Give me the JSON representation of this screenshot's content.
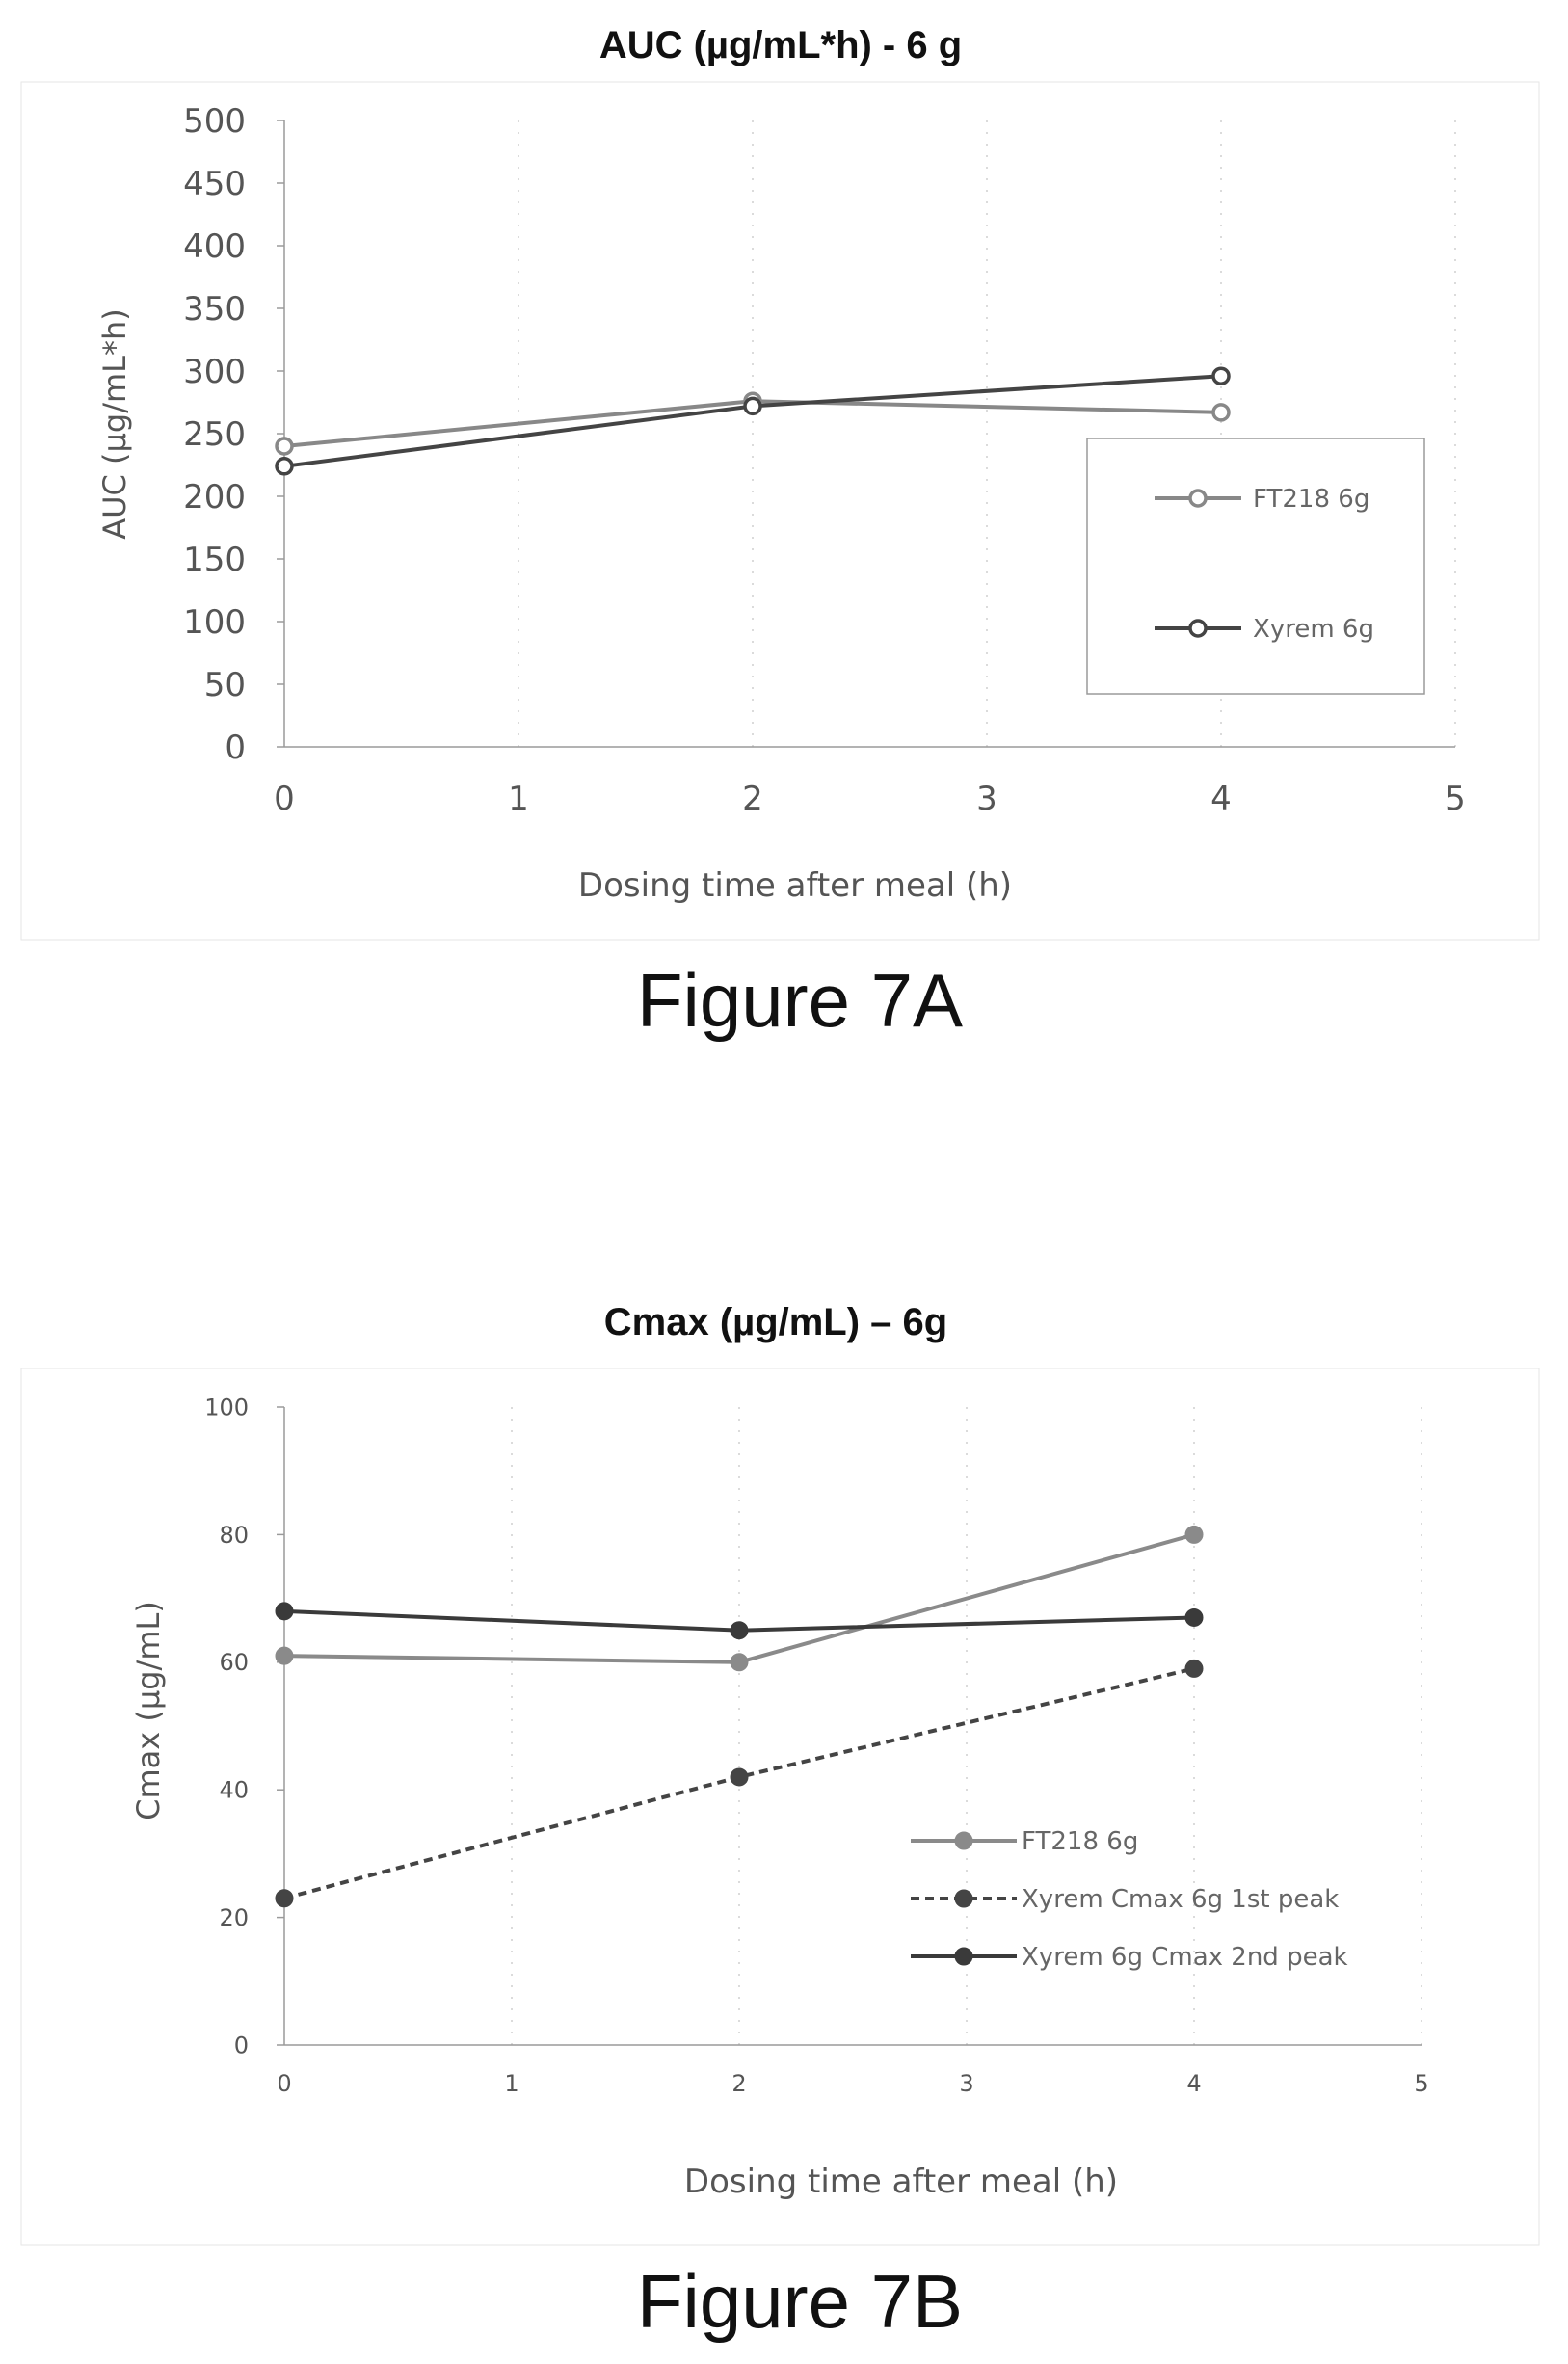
{
  "figures": [
    {
      "label": "Figure 7A"
    },
    {
      "label": "Figure 7B"
    }
  ],
  "chart_data": [
    {
      "type": "line",
      "title": "AUC (µg/mL*h) - 6 g",
      "xlabel": "Dosing time   after meal (h)",
      "ylabel": "AUC (µg/mL*h)",
      "xlim": [
        0,
        5
      ],
      "ylim": [
        0,
        500
      ],
      "xticks": [
        "0",
        "1",
        "2",
        "3",
        "4",
        "5"
      ],
      "yticks": [
        "0",
        "50",
        "100",
        "150",
        "200",
        "250",
        "300",
        "350",
        "400",
        "450",
        "500"
      ],
      "x": [
        0,
        2,
        4
      ],
      "series": [
        {
          "name": "FT218 6g",
          "values": [
            240,
            276,
            267
          ],
          "color": "#888888",
          "style": "solid"
        },
        {
          "name": "Xyrem 6g",
          "values": [
            224,
            272,
            296
          ],
          "color": "#444444",
          "style": "solid"
        }
      ],
      "legend": "inside right"
    },
    {
      "type": "line",
      "title": "Cmax (µg/mL) – 6g",
      "xlabel": "Dosing time   after meal (h)",
      "ylabel": "Cmax (µg/mL)",
      "xlim": [
        0,
        5
      ],
      "ylim": [
        0,
        100
      ],
      "xticks": [
        "0",
        "1",
        "2",
        "3",
        "4",
        "5"
      ],
      "yticks": [
        "0",
        "20",
        "40",
        "60",
        "80",
        "100"
      ],
      "x": [
        0,
        2,
        4
      ],
      "series": [
        {
          "name": "FT218 6g",
          "values": [
            61,
            60,
            80
          ],
          "color": "#8a8a8a",
          "style": "solid"
        },
        {
          "name": "Xyrem Cmax  6g 1st peak",
          "values": [
            23,
            42,
            59
          ],
          "color": "#444444",
          "style": "dashed"
        },
        {
          "name": "Xyrem 6g Cmax 2nd peak",
          "values": [
            68,
            65,
            67
          ],
          "color": "#3a3a3a",
          "style": "solid"
        }
      ],
      "legend": "inside lower right"
    }
  ]
}
